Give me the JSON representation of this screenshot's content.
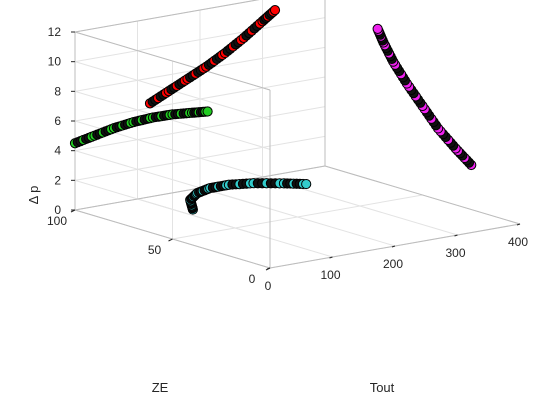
{
  "chart_data": {
    "type": "scatter",
    "title": "",
    "axes": {
      "x": {
        "label": "Tout",
        "range": [
          0,
          400
        ],
        "ticks": [
          "0",
          "100",
          "200",
          "300",
          "400"
        ]
      },
      "y": {
        "label": "ZE",
        "range": [
          0,
          100
        ],
        "ticks": [
          "0",
          "50",
          "100"
        ]
      },
      "z": {
        "label": "Δ p",
        "range": [
          0,
          12
        ],
        "ticks": [
          "0",
          "2",
          "4",
          "6",
          "8",
          "10",
          "12"
        ]
      }
    },
    "grid": true,
    "legend": "none",
    "marker_edge_color": "#000000",
    "series": [
      {
        "color": "#22cc22",
        "projection": "Δ p vs ZE (Tout = 0 plane)",
        "points": [
          {
            "Tout": 0,
            "ZE": 100,
            "dp": 4.5
          },
          {
            "Tout": 0,
            "ZE": 90,
            "dp": 5.4
          },
          {
            "Tout": 0,
            "ZE": 80,
            "dp": 6.3
          },
          {
            "Tout": 0,
            "ZE": 70,
            "dp": 7.1
          },
          {
            "Tout": 0,
            "ZE": 60,
            "dp": 7.8
          },
          {
            "Tout": 0,
            "ZE": 50,
            "dp": 8.4
          },
          {
            "Tout": 0,
            "ZE": 40,
            "dp": 8.9
          },
          {
            "Tout": 0,
            "ZE": 32,
            "dp": 9.3
          }
        ]
      },
      {
        "color": "#ff0000",
        "projection": "Δ p vs Tout (ZE = 100 plane)",
        "points": [
          {
            "Tout": 120,
            "ZE": 100,
            "dp": 6.3
          },
          {
            "Tout": 150,
            "ZE": 100,
            "dp": 6.9
          },
          {
            "Tout": 180,
            "ZE": 100,
            "dp": 7.5
          },
          {
            "Tout": 210,
            "ZE": 100,
            "dp": 8.1
          },
          {
            "Tout": 240,
            "ZE": 100,
            "dp": 8.8
          },
          {
            "Tout": 270,
            "ZE": 100,
            "dp": 9.6
          },
          {
            "Tout": 300,
            "ZE": 100,
            "dp": 10.5
          },
          {
            "Tout": 320,
            "ZE": 100,
            "dp": 11.1
          }
        ]
      },
      {
        "color": "#ee22ee",
        "projection": "Δ p vs ZE (Tout = 400 plane)",
        "points": [
          {
            "Tout": 400,
            "ZE": 25,
            "dp": 3.0
          },
          {
            "Tout": 400,
            "ZE": 33,
            "dp": 3.8
          },
          {
            "Tout": 400,
            "ZE": 42,
            "dp": 4.8
          },
          {
            "Tout": 400,
            "ZE": 50,
            "dp": 6.0
          },
          {
            "Tout": 400,
            "ZE": 58,
            "dp": 7.2
          },
          {
            "Tout": 400,
            "ZE": 65,
            "dp": 8.4
          },
          {
            "Tout": 400,
            "ZE": 70,
            "dp": 9.5
          },
          {
            "Tout": 400,
            "ZE": 73,
            "dp": 10.3
          }
        ]
      },
      {
        "color": "#33cccc",
        "projection": "ZE vs Tout (Δ p = 0 plane)",
        "points": [
          {
            "Tout": 120,
            "ZE": 78,
            "dp": 0
          },
          {
            "Tout": 150,
            "ZE": 89,
            "dp": 0
          },
          {
            "Tout": 180,
            "ZE": 95,
            "dp": 0
          },
          {
            "Tout": 210,
            "ZE": 98,
            "dp": 0
          },
          {
            "Tout": 240,
            "ZE": 98,
            "dp": 0
          },
          {
            "Tout": 270,
            "ZE": 95,
            "dp": 0
          },
          {
            "Tout": 300,
            "ZE": 89,
            "dp": 0
          },
          {
            "Tout": 320,
            "ZE": 84,
            "dp": 0
          }
        ]
      }
    ]
  }
}
